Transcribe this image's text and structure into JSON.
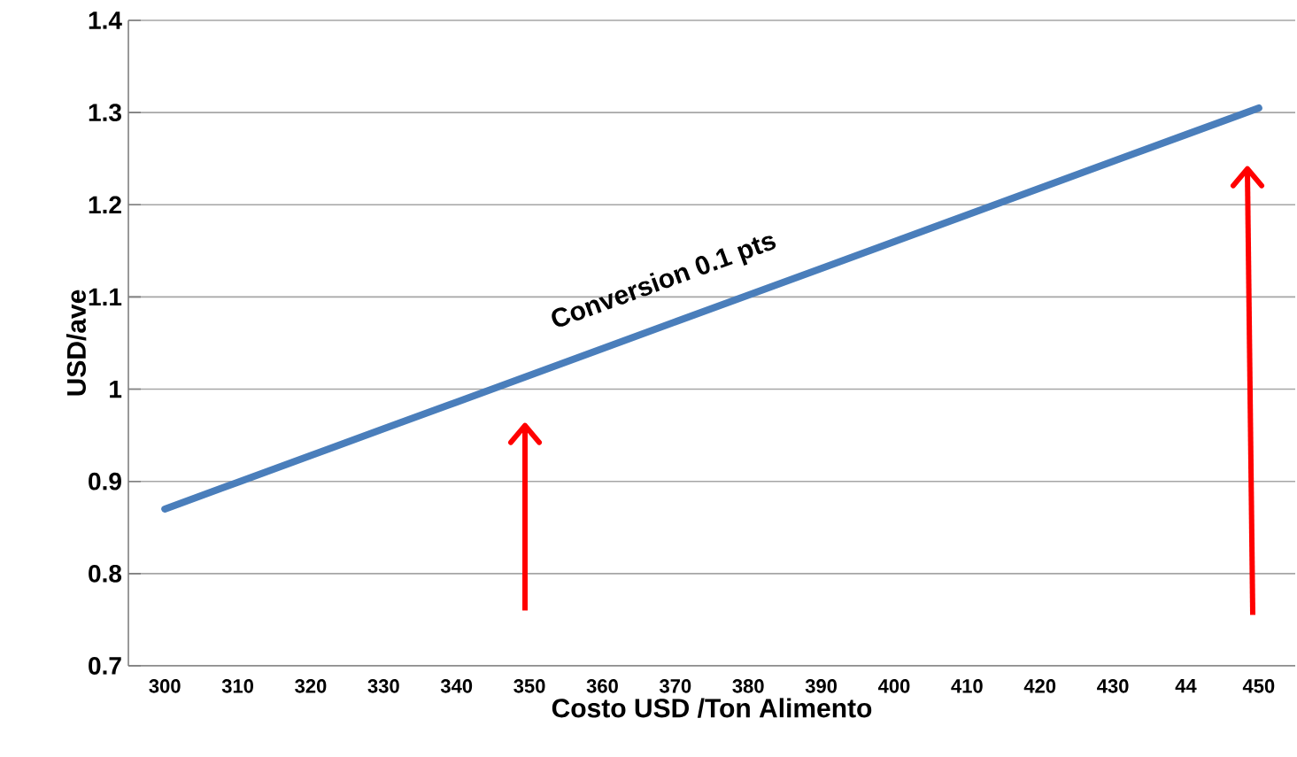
{
  "chart_data": {
    "type": "line",
    "xlabel": "Costo USD /Ton Alimento",
    "ylabel": "USD/ave",
    "categories": [
      "300",
      "310",
      "320",
      "330",
      "340",
      "350",
      "360",
      "370",
      "380",
      "390",
      "400",
      "410",
      "420",
      "430",
      "44",
      "450"
    ],
    "series": [
      {
        "color": "#4a7ebb",
        "values": [
          0.87,
          0.899,
          0.928,
          0.957,
          0.986,
          1.015,
          1.044,
          1.073,
          1.102,
          1.131,
          1.16,
          1.189,
          1.218,
          1.247,
          1.276,
          1.305
        ]
      }
    ],
    "ylim": [
      0.7,
      1.4
    ],
    "yticks": [
      0.7,
      0.8,
      0.9,
      1,
      1.1,
      1.2,
      1.3,
      1.4
    ],
    "grid": "y",
    "marker": "none",
    "line_style": "solid",
    "annotations": [
      "Conversion 0.1 pts"
    ]
  }
}
